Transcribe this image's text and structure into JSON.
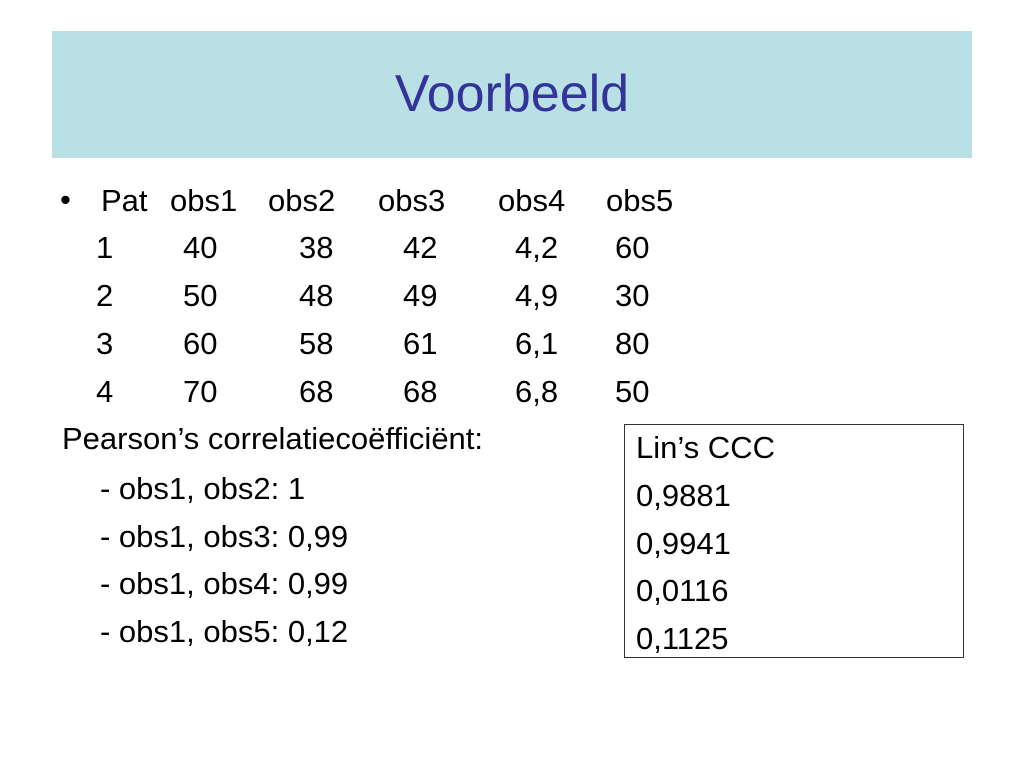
{
  "title": "Voorbeeld",
  "table": {
    "header": [
      "Pat",
      "obs1",
      "obs2",
      "obs3",
      "obs4",
      "obs5"
    ],
    "rows": [
      [
        "1",
        "40",
        "38",
        "42",
        "4,2",
        "60"
      ],
      [
        "2",
        "50",
        "48",
        "49",
        "4,9",
        "30"
      ],
      [
        "3",
        "60",
        "58",
        "61",
        "6,1",
        "80"
      ],
      [
        "4",
        "70",
        "68",
        "68",
        "6,8",
        "50"
      ]
    ]
  },
  "pearson": {
    "label": "Pearson’s correlatiecoëfficiënt:",
    "items": [
      "- obs1, obs2: 1",
      "- obs1, obs3: 0,99",
      "- obs1, obs4: 0,99",
      "- obs1, obs5: 0,12"
    ]
  },
  "lin": {
    "title": "Lin’s CCC",
    "values": [
      "0,9881",
      "0,9941",
      "0,0116",
      "0,1125"
    ]
  }
}
